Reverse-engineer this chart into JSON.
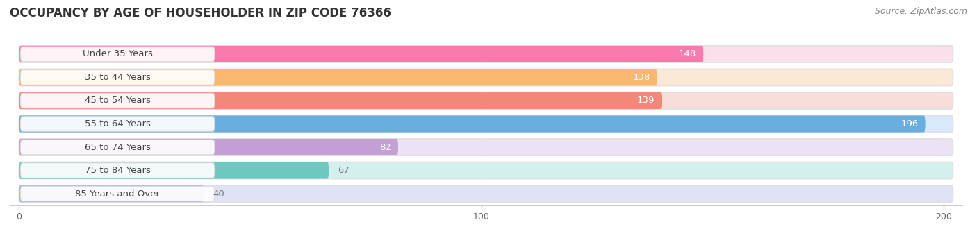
{
  "title": "OCCUPANCY BY AGE OF HOUSEHOLDER IN ZIP CODE 76366",
  "source": "Source: ZipAtlas.com",
  "categories": [
    "Under 35 Years",
    "35 to 44 Years",
    "45 to 54 Years",
    "55 to 64 Years",
    "65 to 74 Years",
    "75 to 84 Years",
    "85 Years and Over"
  ],
  "values": [
    148,
    138,
    139,
    196,
    82,
    67,
    40
  ],
  "bar_colors": [
    "#F97BAE",
    "#F9B870",
    "#F0897A",
    "#6AAEE0",
    "#C49FD4",
    "#6DC8BF",
    "#AAB4E8"
  ],
  "bar_bg_colors": [
    "#FAE0EA",
    "#FBE8D5",
    "#F9DDD8",
    "#D8EAFA",
    "#EDE2F5",
    "#D3F0EE",
    "#E0E3F8"
  ],
  "xlim_max": 200,
  "xticks": [
    0,
    100,
    200
  ],
  "title_fontsize": 12,
  "label_fontsize": 9.5,
  "value_fontsize": 9.5,
  "source_fontsize": 9,
  "background_color": "#ffffff",
  "bar_height": 0.72,
  "value_text_color_inside": "#ffffff",
  "value_text_color_outside": "#777777"
}
